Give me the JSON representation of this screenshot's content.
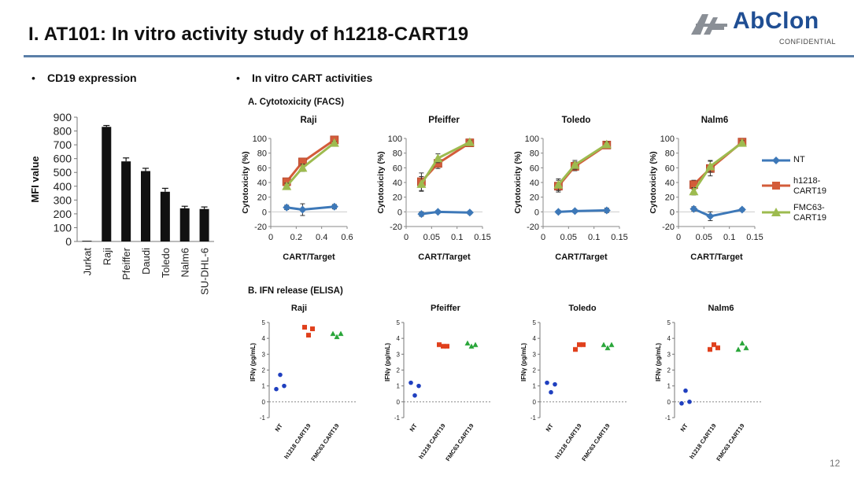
{
  "slide": {
    "title": "I. AT101: In vitro activity study of h1218-CART19",
    "page_number": "12"
  },
  "logo": {
    "text": "AbClon",
    "sub": "CONFIDENTIAL"
  },
  "sections": {
    "left_bullet": "•",
    "left_title": "CD19 expression",
    "right_bullet": "•",
    "right_title": "In vitro CART activities",
    "cytotoxicity_title": "A. Cytotoxicity (FACS)",
    "ifn_title": "B. IFN release (ELISA)"
  },
  "legend": [
    {
      "name": "NT",
      "color": "#3d78b8"
    },
    {
      "name": "h1218-\nCART19",
      "color": "#d35c3a"
    },
    {
      "name": "FMC63-\nCART19",
      "color": "#9dbb4f"
    }
  ],
  "chart_data": [
    {
      "id": "cd19",
      "type": "bar",
      "ylabel": "MFI value",
      "ylim": [
        0,
        900
      ],
      "yticks": [
        0,
        100,
        200,
        300,
        400,
        500,
        600,
        700,
        800,
        900
      ],
      "categories": [
        "Jurkat",
        "Raji",
        "Pfeiffer",
        "Daudi",
        "Toledo",
        "Nalm6",
        "SU-DHL-6"
      ],
      "values": [
        5,
        830,
        580,
        510,
        360,
        240,
        235
      ],
      "errors": [
        0,
        10,
        25,
        20,
        25,
        15,
        15
      ],
      "color": "#111111"
    },
    {
      "id": "cyto-raji",
      "type": "line",
      "title": "Raji",
      "xlabel": "CART/Target",
      "ylabel": "Cytotoxicity (%)",
      "xlim": [
        0,
        0.6
      ],
      "xticks": [
        "0",
        "0.2",
        "0.4",
        "0.6"
      ],
      "xtick_values": [
        0,
        0.2,
        0.4,
        0.6
      ],
      "ylim": [
        -20,
        100
      ],
      "yticks": [
        -20,
        0,
        20,
        40,
        60,
        80,
        100
      ],
      "x": [
        0.125,
        0.25,
        0.5
      ],
      "series": [
        {
          "name": "NT",
          "values": [
            6,
            3,
            7
          ],
          "errors": [
            3,
            8,
            3
          ],
          "marker": "diamond"
        },
        {
          "name": "h1218-CART19",
          "values": [
            41,
            68,
            98
          ],
          "errors": [
            4,
            5,
            2
          ],
          "marker": "square"
        },
        {
          "name": "FMC63-CART19",
          "values": [
            35,
            60,
            94
          ],
          "errors": [
            4,
            5,
            2
          ],
          "marker": "triangle"
        }
      ]
    },
    {
      "id": "cyto-pfeiffer",
      "type": "line",
      "title": "Pfeiffer",
      "xlabel": "CART/Target",
      "ylabel": "Cytotoxicity (%)",
      "xlim": [
        0,
        0.15
      ],
      "xticks": [
        "0",
        "0.05",
        "0.1",
        "0.15"
      ],
      "xtick_values": [
        0,
        0.05,
        0.1,
        0.15
      ],
      "ylim": [
        -20,
        100
      ],
      "yticks": [
        -20,
        0,
        20,
        40,
        60,
        80,
        100
      ],
      "x": [
        0.03,
        0.0625,
        0.125
      ],
      "series": [
        {
          "name": "NT",
          "values": [
            -3,
            0,
            -1
          ],
          "errors": [
            3,
            2,
            2
          ],
          "marker": "diamond"
        },
        {
          "name": "h1218-CART19",
          "values": [
            41,
            66,
            94
          ],
          "errors": [
            12,
            7,
            3
          ],
          "marker": "square"
        },
        {
          "name": "FMC63-CART19",
          "values": [
            38,
            73,
            95
          ],
          "errors": [
            10,
            6,
            2
          ],
          "marker": "triangle"
        }
      ]
    },
    {
      "id": "cyto-toledo",
      "type": "line",
      "title": "Toledo",
      "xlabel": "CART/Target",
      "ylabel": "Cytotoxicity (%)",
      "xlim": [
        0,
        0.15
      ],
      "xticks": [
        "0",
        "0.05",
        "0.1",
        "0.15"
      ],
      "xtick_values": [
        0,
        0.05,
        0.1,
        0.15
      ],
      "ylim": [
        -20,
        100
      ],
      "yticks": [
        -20,
        0,
        20,
        40,
        60,
        80,
        100
      ],
      "x": [
        0.03,
        0.0625,
        0.125
      ],
      "series": [
        {
          "name": "NT",
          "values": [
            0,
            1,
            2
          ],
          "errors": [
            2,
            2,
            3
          ],
          "marker": "diamond"
        },
        {
          "name": "h1218-CART19",
          "values": [
            35,
            62,
            91
          ],
          "errors": [
            8,
            6,
            3
          ],
          "marker": "square"
        },
        {
          "name": "FMC63-CART19",
          "values": [
            37,
            64,
            92
          ],
          "errors": [
            8,
            6,
            3
          ],
          "marker": "triangle"
        }
      ]
    },
    {
      "id": "cyto-nalm6",
      "type": "line",
      "title": "Nalm6",
      "xlabel": "CART/Target",
      "ylabel": "Cytotoxicity (%)",
      "xlim": [
        0,
        0.15
      ],
      "xticks": [
        "0",
        "0.05",
        "0.1",
        "0.15"
      ],
      "xtick_values": [
        0,
        0.05,
        0.1,
        0.15
      ],
      "ylim": [
        -20,
        100
      ],
      "yticks": [
        -20,
        0,
        20,
        40,
        60,
        80,
        100
      ],
      "x": [
        0.03,
        0.0625,
        0.125
      ],
      "series": [
        {
          "name": "NT",
          "values": [
            4,
            -6,
            3
          ],
          "errors": [
            3,
            6,
            2
          ],
          "marker": "diamond"
        },
        {
          "name": "h1218-CART19",
          "values": [
            37,
            59,
            95
          ],
          "errors": [
            6,
            10,
            3
          ],
          "marker": "square"
        },
        {
          "name": "FMC63-CART19",
          "values": [
            28,
            62,
            94
          ],
          "errors": [
            5,
            8,
            3
          ],
          "marker": "triangle"
        }
      ]
    },
    {
      "id": "ifn-raji",
      "type": "scatter",
      "title": "Raji",
      "ylabel": "IFNγ (pg/mL)",
      "ylim": [
        -1,
        5
      ],
      "yticks": [
        -1,
        0,
        1,
        2,
        3,
        4,
        5
      ],
      "categories": [
        "NT",
        "h1218 CART19",
        "FMC63 CART19"
      ],
      "series": [
        {
          "name": "NT",
          "values": [
            0.8,
            1.7,
            1.0
          ],
          "color": "#1f3fbf",
          "marker": "circle"
        },
        {
          "name": "h1218 CART19",
          "values": [
            4.7,
            4.2,
            4.6
          ],
          "color": "#e0401c",
          "marker": "square"
        },
        {
          "name": "FMC63 CART19",
          "values": [
            4.3,
            4.1,
            4.3
          ],
          "color": "#2aa63a",
          "marker": "triangle"
        }
      ]
    },
    {
      "id": "ifn-pfeiffer",
      "type": "scatter",
      "title": "Pfeiffer",
      "ylabel": "IFNγ (pg/mL)",
      "ylim": [
        -1,
        5
      ],
      "yticks": [
        -1,
        0,
        1,
        2,
        3,
        4,
        5
      ],
      "categories": [
        "NT",
        "h1218 CART19",
        "FMC63 CART19"
      ],
      "series": [
        {
          "name": "NT",
          "values": [
            1.2,
            0.4,
            1.0
          ],
          "color": "#1f3fbf",
          "marker": "circle"
        },
        {
          "name": "h1218 CART19",
          "values": [
            3.6,
            3.5,
            3.5
          ],
          "color": "#e0401c",
          "marker": "square"
        },
        {
          "name": "FMC63 CART19",
          "values": [
            3.7,
            3.5,
            3.6
          ],
          "color": "#2aa63a",
          "marker": "triangle"
        }
      ]
    },
    {
      "id": "ifn-toledo",
      "type": "scatter",
      "title": "Toledo",
      "ylabel": "IFNγ (pg/mL)",
      "ylim": [
        -1,
        5
      ],
      "yticks": [
        -1,
        0,
        1,
        2,
        3,
        4,
        5
      ],
      "categories": [
        "NT",
        "h1218 CART19",
        "FMC63 CART19"
      ],
      "series": [
        {
          "name": "NT",
          "values": [
            1.2,
            0.6,
            1.1
          ],
          "color": "#1f3fbf",
          "marker": "circle"
        },
        {
          "name": "h1218 CART19",
          "values": [
            3.3,
            3.6,
            3.6
          ],
          "color": "#e0401c",
          "marker": "square"
        },
        {
          "name": "FMC63 CART19",
          "values": [
            3.6,
            3.4,
            3.6
          ],
          "color": "#2aa63a",
          "marker": "triangle"
        }
      ]
    },
    {
      "id": "ifn-nalm6",
      "type": "scatter",
      "title": "Nalm6",
      "ylabel": "IFNγ (pg/mL)",
      "ylim": [
        -1,
        5
      ],
      "yticks": [
        -1,
        0,
        1,
        2,
        3,
        4,
        5
      ],
      "categories": [
        "NT",
        "h1218 CART19",
        "FMC63 CART19"
      ],
      "series": [
        {
          "name": "NT",
          "values": [
            -0.1,
            0.7,
            0.0
          ],
          "color": "#1f3fbf",
          "marker": "circle"
        },
        {
          "name": "h1218 CART19",
          "values": [
            3.3,
            3.6,
            3.4
          ],
          "color": "#e0401c",
          "marker": "square"
        },
        {
          "name": "FMC63 CART19",
          "values": [
            3.3,
            3.7,
            3.4
          ],
          "color": "#2aa63a",
          "marker": "triangle"
        }
      ]
    }
  ]
}
